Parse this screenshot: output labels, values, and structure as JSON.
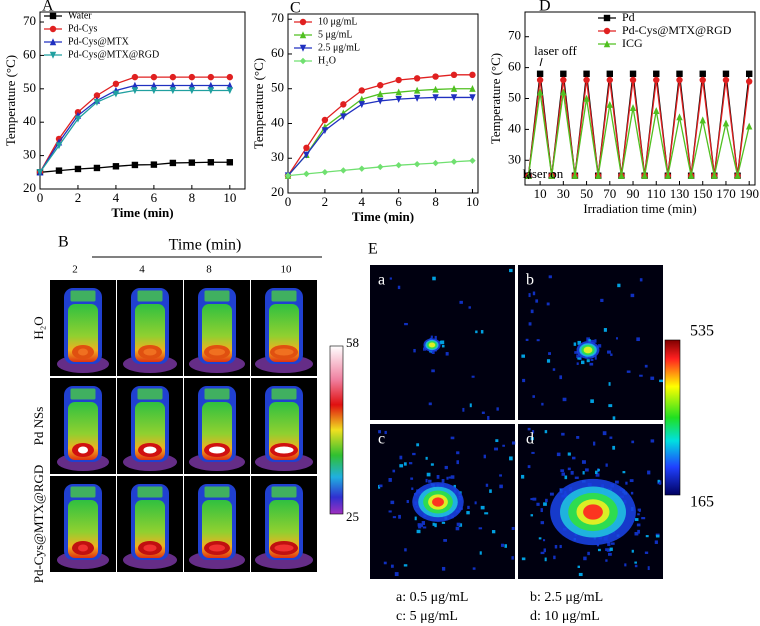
{
  "chart_data": [
    {
      "type": "line",
      "label": "A",
      "xlabel": "Time (min)",
      "ylabel": "Temperature (°C)",
      "x": [
        0,
        1,
        2,
        3,
        4,
        5,
        6,
        7,
        8,
        9,
        10
      ],
      "xlim": [
        0,
        10.8
      ],
      "ylim": [
        20,
        73
      ],
      "xticks": [
        0,
        2,
        4,
        6,
        8,
        10
      ],
      "yticks": [
        20,
        30,
        40,
        50,
        60,
        70
      ],
      "legend": "upper left",
      "series": [
        {
          "name": "Water",
          "color": "#000000",
          "marker": "square",
          "values": [
            25,
            25.5,
            26,
            26.3,
            26.8,
            27.2,
            27.3,
            27.8,
            27.9,
            28,
            28
          ]
        },
        {
          "name": "Pd-Cys",
          "color": "#e02020",
          "marker": "circle",
          "values": [
            25,
            35,
            43,
            48,
            51.5,
            53.5,
            53.5,
            53.5,
            53.5,
            53.5,
            53.5
          ]
        },
        {
          "name": "Pd-Cys@MTX",
          "color": "#2030c0",
          "marker": "triangle",
          "values": [
            25,
            34,
            42,
            46.5,
            49.5,
            51,
            51,
            51,
            51,
            51,
            51
          ]
        },
        {
          "name": "Pd-Cys@MTX@RGD",
          "color": "#20a0a0",
          "marker": "triangle-down",
          "values": [
            25,
            33,
            41,
            46,
            48.5,
            49.5,
            49.5,
            49.5,
            49.5,
            49.5,
            49.5
          ]
        }
      ]
    },
    {
      "type": "line",
      "label": "C",
      "xlabel": "Time (min)",
      "ylabel": "Temperature (°C)",
      "x": [
        0,
        1,
        2,
        3,
        4,
        5,
        6,
        7,
        8,
        9,
        10
      ],
      "xlim": [
        0,
        10.3
      ],
      "ylim": [
        20,
        71.5
      ],
      "xticks": [
        0,
        2,
        4,
        6,
        8,
        10
      ],
      "yticks": [
        20,
        30,
        40,
        50,
        60,
        70
      ],
      "legend": "upper left",
      "series": [
        {
          "name": "10 μg/mL",
          "color": "#e02020",
          "marker": "circle",
          "values": [
            25,
            33,
            41,
            45.5,
            49.5,
            51,
            52.5,
            53,
            53.5,
            54,
            54
          ]
        },
        {
          "name": "5 μg/mL",
          "color": "#50c020",
          "marker": "triangle",
          "values": [
            25,
            31,
            39,
            43,
            47,
            48.5,
            49,
            49.5,
            49.8,
            50,
            50
          ]
        },
        {
          "name": "2.5 μg/mL",
          "color": "#2030c0",
          "marker": "triangle-down",
          "values": [
            25,
            31,
            38,
            42,
            45.5,
            46.5,
            47,
            47.3,
            47.5,
            47.5,
            47.5
          ]
        },
        {
          "name": "H₂O",
          "color": "#70e070",
          "marker": "diamond",
          "values": [
            25,
            25.5,
            26,
            26.5,
            27,
            27.5,
            28,
            28.3,
            28.6,
            29,
            29.3
          ]
        }
      ]
    },
    {
      "type": "line",
      "label": "D",
      "xlabel": "Irradiation time (min)",
      "ylabel": "Temperature (°C)",
      "x": [
        0,
        10,
        20,
        30,
        40,
        50,
        60,
        70,
        80,
        90,
        100,
        110,
        120,
        130,
        140,
        150,
        160,
        170,
        180,
        190
      ],
      "xlim": [
        -3,
        195
      ],
      "ylim": [
        22,
        78
      ],
      "xticks": [
        10,
        30,
        50,
        70,
        90,
        110,
        130,
        150,
        170,
        190
      ],
      "yticks": [
        30,
        40,
        50,
        60,
        70
      ],
      "legend": "upper right",
      "annotations": [
        "laser off",
        "laser on"
      ],
      "series": [
        {
          "name": "Pd",
          "color": "#000000",
          "marker": "square",
          "values": [
            25,
            58,
            25,
            58,
            25,
            58,
            25,
            58,
            25,
            58,
            25,
            58,
            25,
            58,
            25,
            58,
            25,
            58,
            25,
            58
          ]
        },
        {
          "name": "Pd-Cys@MTX@RGD",
          "color": "#e02020",
          "marker": "circle",
          "values": [
            25,
            56,
            25,
            56,
            25,
            56,
            25,
            56,
            25,
            56,
            25,
            56,
            25,
            56,
            25,
            56,
            25,
            56,
            25,
            55.5
          ]
        },
        {
          "name": "ICG",
          "color": "#50c020",
          "marker": "triangle",
          "values": [
            25,
            52,
            25,
            52,
            25,
            50,
            25,
            48,
            25,
            47,
            25,
            46,
            25,
            44,
            25,
            43,
            25,
            42,
            25,
            41
          ]
        }
      ]
    }
  ],
  "panel_b": {
    "label": "B",
    "time_label": "Time (min)",
    "times": [
      "2",
      "4",
      "8",
      "10"
    ],
    "samples": [
      "H₂O",
      "Pd NSs",
      "Pd-Cys@MTX@RGD"
    ],
    "scale_max": "58",
    "scale_min": "25"
  },
  "panel_e": {
    "label": "E",
    "images": [
      "a",
      "b",
      "c",
      "d"
    ],
    "scale_max": "535",
    "scale_min": "165",
    "captions": [
      "a: 0.5 μg/mL",
      "b: 2.5 μg/mL",
      "c: 5 μg/mL",
      "d: 10 μg/mL"
    ]
  }
}
